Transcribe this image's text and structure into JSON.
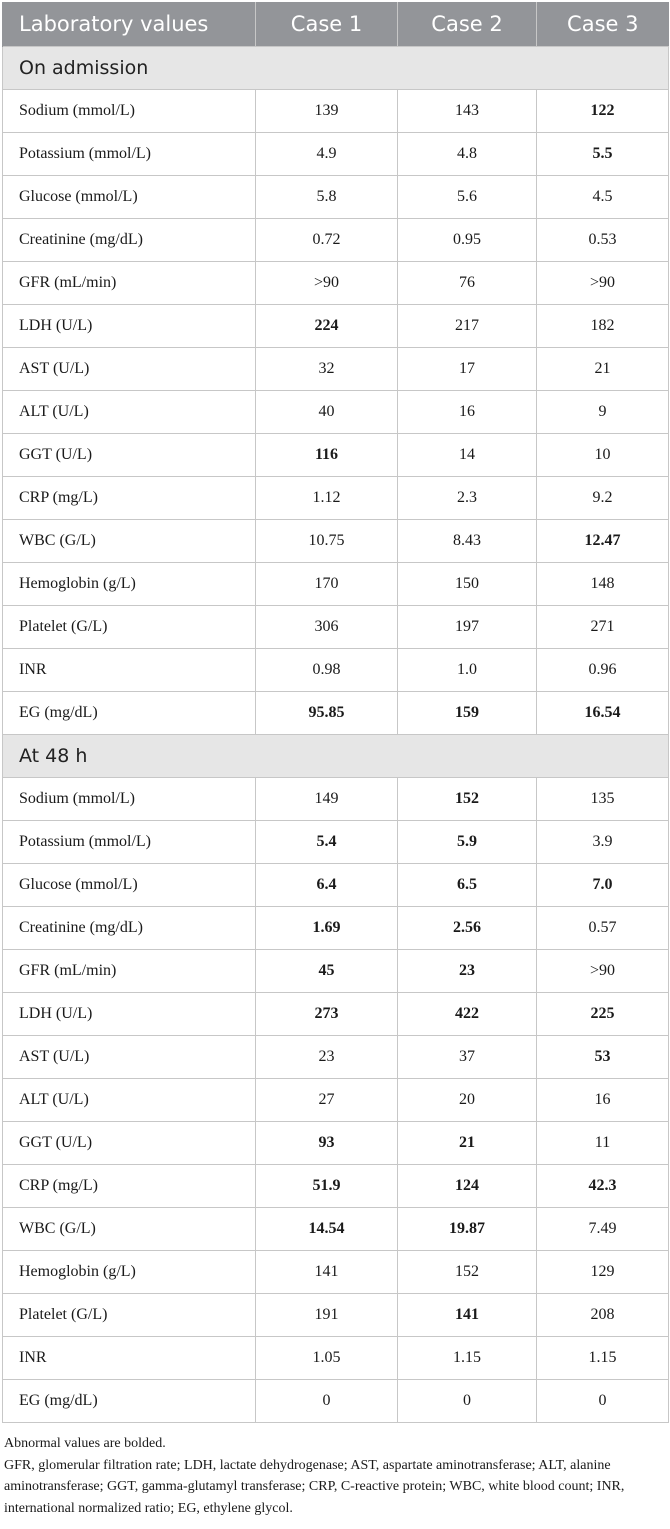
{
  "table": {
    "headers": [
      "Laboratory values",
      "Case 1",
      "Case 2",
      "Case 3"
    ],
    "sections": [
      {
        "title": "On admission",
        "rows": [
          {
            "label": "Sodium (mmol/L)",
            "values": [
              "139",
              "143",
              "122"
            ],
            "bold": [
              false,
              false,
              true
            ]
          },
          {
            "label": "Potassium (mmol/L)",
            "values": [
              "4.9",
              "4.8",
              "5.5"
            ],
            "bold": [
              false,
              false,
              true
            ]
          },
          {
            "label": "Glucose (mmol/L)",
            "values": [
              "5.8",
              "5.6",
              "4.5"
            ],
            "bold": [
              false,
              false,
              false
            ]
          },
          {
            "label": "Creatinine (mg/dL)",
            "values": [
              "0.72",
              "0.95",
              "0.53"
            ],
            "bold": [
              false,
              false,
              false
            ]
          },
          {
            "label": "GFR (mL/min)",
            "values": [
              ">90",
              "76",
              ">90"
            ],
            "bold": [
              false,
              false,
              false
            ]
          },
          {
            "label": "LDH (U/L)",
            "values": [
              "224",
              "217",
              "182"
            ],
            "bold": [
              true,
              false,
              false
            ]
          },
          {
            "label": "AST (U/L)",
            "values": [
              "32",
              "17",
              "21"
            ],
            "bold": [
              false,
              false,
              false
            ]
          },
          {
            "label": "ALT (U/L)",
            "values": [
              "40",
              "16",
              "9"
            ],
            "bold": [
              false,
              false,
              false
            ]
          },
          {
            "label": "GGT (U/L)",
            "values": [
              "116",
              "14",
              "10"
            ],
            "bold": [
              true,
              false,
              false
            ]
          },
          {
            "label": "CRP (mg/L)",
            "values": [
              "1.12",
              "2.3",
              "9.2"
            ],
            "bold": [
              false,
              false,
              false
            ]
          },
          {
            "label": "WBC (G/L)",
            "values": [
              "10.75",
              "8.43",
              "12.47"
            ],
            "bold": [
              false,
              false,
              true
            ]
          },
          {
            "label": "Hemoglobin (g/L)",
            "values": [
              "170",
              "150",
              "148"
            ],
            "bold": [
              false,
              false,
              false
            ]
          },
          {
            "label": "Platelet (G/L)",
            "values": [
              "306",
              "197",
              "271"
            ],
            "bold": [
              false,
              false,
              false
            ]
          },
          {
            "label": "INR",
            "values": [
              "0.98",
              "1.0",
              "0.96"
            ],
            "bold": [
              false,
              false,
              false
            ]
          },
          {
            "label": "EG (mg/dL)",
            "values": [
              "95.85",
              "159",
              "16.54"
            ],
            "bold": [
              true,
              true,
              true
            ]
          }
        ]
      },
      {
        "title": "At 48 h",
        "rows": [
          {
            "label": "Sodium (mmol/L)",
            "values": [
              "149",
              "152",
              "135"
            ],
            "bold": [
              false,
              true,
              false
            ]
          },
          {
            "label": "Potassium (mmol/L)",
            "values": [
              "5.4",
              "5.9",
              "3.9"
            ],
            "bold": [
              true,
              true,
              false
            ]
          },
          {
            "label": "Glucose (mmol/L)",
            "values": [
              "6.4",
              "6.5",
              "7.0"
            ],
            "bold": [
              true,
              true,
              true
            ]
          },
          {
            "label": "Creatinine (mg/dL)",
            "values": [
              "1.69",
              "2.56",
              "0.57"
            ],
            "bold": [
              true,
              true,
              false
            ]
          },
          {
            "label": "GFR (mL/min)",
            "values": [
              "45",
              "23",
              ">90"
            ],
            "bold": [
              true,
              true,
              false
            ]
          },
          {
            "label": "LDH (U/L)",
            "values": [
              "273",
              "422",
              "225"
            ],
            "bold": [
              true,
              true,
              true
            ]
          },
          {
            "label": "AST (U/L)",
            "values": [
              "23",
              "37",
              "53"
            ],
            "bold": [
              false,
              false,
              true
            ]
          },
          {
            "label": "ALT (U/L)",
            "values": [
              "27",
              "20",
              "16"
            ],
            "bold": [
              false,
              false,
              false
            ]
          },
          {
            "label": "GGT (U/L)",
            "values": [
              "93",
              "21",
              "11"
            ],
            "bold": [
              true,
              true,
              false
            ]
          },
          {
            "label": "CRP (mg/L)",
            "values": [
              "51.9",
              "124",
              "42.3"
            ],
            "bold": [
              true,
              true,
              true
            ]
          },
          {
            "label": "WBC (G/L)",
            "values": [
              "14.54",
              "19.87",
              "7.49"
            ],
            "bold": [
              true,
              true,
              false
            ]
          },
          {
            "label": "Hemoglobin (g/L)",
            "values": [
              "141",
              "152",
              "129"
            ],
            "bold": [
              false,
              false,
              false
            ]
          },
          {
            "label": "Platelet (G/L)",
            "values": [
              "191",
              "141",
              "208"
            ],
            "bold": [
              false,
              true,
              false
            ]
          },
          {
            "label": "INR",
            "values": [
              "1.05",
              "1.15",
              "1.15"
            ],
            "bold": [
              false,
              false,
              false
            ]
          },
          {
            "label": "EG (mg/dL)",
            "values": [
              "0",
              "0",
              "0"
            ],
            "bold": [
              false,
              false,
              false
            ]
          }
        ]
      }
    ]
  },
  "footnotes": {
    "line1": "Abnormal values are bolded.",
    "line2": "GFR, glomerular filtration rate; LDH, lactate dehydrogenase; AST, aspartate aminotransferase; ALT, alanine aminotransferase; GGT, gamma-glutamyl transferase; CRP, C-reactive protein; WBC, white blood count; INR, international normalized ratio; EG, ethylene glycol."
  },
  "colors": {
    "header_bg": "#939599",
    "section_bg": "#e6e6e6",
    "border": "#c7c7c7"
  }
}
